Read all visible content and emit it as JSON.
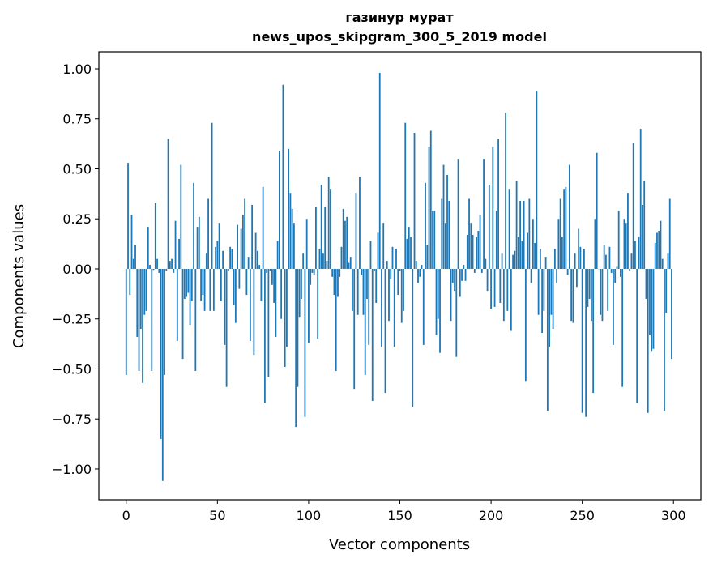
{
  "chart_data": {
    "type": "bar",
    "title_line1": "газинур мурат",
    "title_line2": "news_upos_skipgram_300_5_2019 model",
    "xlabel": "Vector components",
    "ylabel": "Components values",
    "xlim": [
      -15,
      315
    ],
    "ylim": [
      -1.154,
      1.085
    ],
    "xticks": [
      0,
      50,
      100,
      150,
      200,
      250,
      300
    ],
    "xtick_labels": [
      "0",
      "50",
      "100",
      "150",
      "200",
      "250",
      "300"
    ],
    "yticks": [
      1.0,
      0.75,
      0.5,
      0.25,
      0.0,
      -0.25,
      -0.5,
      -0.75,
      -1.0
    ],
    "ytick_labels": [
      "1.00",
      "0.75",
      "0.50",
      "0.25",
      "0.00",
      "−0.25",
      "−0.50",
      "−0.75",
      "−1.00"
    ],
    "grid": false,
    "bar_color": "#1f77b4",
    "values": [
      -0.53,
      0.53,
      -0.13,
      0.27,
      0.05,
      0.12,
      -0.34,
      -0.51,
      -0.3,
      -0.57,
      -0.23,
      -0.21,
      0.21,
      0.02,
      -0.51,
      -0.005,
      0.33,
      0.05,
      -0.02,
      -0.85,
      -1.06,
      -0.53,
      -0.01,
      0.65,
      0.04,
      0.05,
      -0.02,
      0.24,
      -0.36,
      0.15,
      0.52,
      -0.45,
      -0.15,
      -0.14,
      -0.12,
      -0.28,
      -0.16,
      0.43,
      -0.51,
      0.21,
      0.26,
      -0.16,
      -0.13,
      -0.21,
      0.08,
      0.35,
      -0.21,
      0.73,
      -0.21,
      0.11,
      0.14,
      0.23,
      -0.16,
      0.09,
      -0.38,
      -0.59,
      -0.01,
      0.11,
      0.1,
      -0.18,
      -0.27,
      0.22,
      -0.1,
      0.2,
      0.27,
      0.35,
      -0.13,
      0.06,
      -0.36,
      0.32,
      -0.43,
      0.18,
      0.09,
      0.02,
      -0.16,
      0.41,
      -0.67,
      -0.02,
      -0.54,
      -0.01,
      -0.08,
      -0.17,
      -0.34,
      0.14,
      0.59,
      -0.25,
      0.92,
      -0.49,
      -0.39,
      0.6,
      0.38,
      0.3,
      0.23,
      -0.79,
      -0.59,
      -0.24,
      -0.15,
      0.08,
      -0.74,
      0.25,
      -0.37,
      -0.08,
      -0.02,
      -0.03,
      0.31,
      -0.35,
      0.1,
      0.42,
      0.08,
      0.31,
      0.04,
      0.46,
      0.4,
      -0.04,
      -0.13,
      -0.51,
      -0.14,
      -0.04,
      0.11,
      0.3,
      0.24,
      0.26,
      0.03,
      0.06,
      -0.21,
      -0.6,
      0.38,
      -0.23,
      0.46,
      -0.03,
      -0.23,
      -0.53,
      -0.15,
      -0.38,
      0.14,
      -0.66,
      -0.01,
      -0.17,
      0.18,
      0.98,
      -0.39,
      0.23,
      -0.62,
      0.04,
      -0.26,
      -0.05,
      0.11,
      -0.39,
      0.1,
      -0.13,
      -0.01,
      -0.27,
      -0.21,
      0.73,
      0.15,
      0.21,
      0.16,
      -0.69,
      0.68,
      0.04,
      -0.07,
      -0.04,
      0.02,
      -0.38,
      0.43,
      0.12,
      0.61,
      0.69,
      0.29,
      0.29,
      -0.33,
      -0.25,
      -0.42,
      0.35,
      0.52,
      0.23,
      0.47,
      0.34,
      -0.26,
      -0.07,
      -0.11,
      -0.44,
      0.55,
      -0.14,
      -0.06,
      0.02,
      -0.06,
      0.17,
      0.35,
      0.23,
      0.17,
      -0.02,
      0.16,
      0.19,
      0.27,
      -0.02,
      0.55,
      0.05,
      -0.11,
      0.42,
      -0.2,
      0.61,
      -0.19,
      0.29,
      0.65,
      -0.17,
      0.08,
      -0.26,
      0.78,
      -0.21,
      0.4,
      -0.31,
      0.07,
      0.09,
      0.44,
      0.16,
      0.34,
      0.14,
      0.34,
      -0.56,
      0.18,
      0.35,
      -0.07,
      0.25,
      0.13,
      0.89,
      -0.23,
      0.1,
      -0.32,
      -0.21,
      0.06,
      -0.71,
      -0.39,
      -0.23,
      -0.3,
      0.1,
      -0.07,
      0.25,
      0.35,
      0.16,
      0.4,
      0.41,
      -0.03,
      0.52,
      -0.26,
      -0.27,
      0.08,
      -0.09,
      0.2,
      0.11,
      -0.72,
      0.1,
      -0.74,
      -0.19,
      -0.15,
      -0.26,
      -0.62,
      0.25,
      0.58,
      0.0,
      -0.23,
      -0.26,
      0.12,
      0.07,
      -0.21,
      0.11,
      -0.02,
      -0.38,
      -0.07,
      0.01,
      0.29,
      -0.04,
      -0.59,
      0.25,
      0.23,
      0.38,
      -0.01,
      0.08,
      0.63,
      0.14,
      -0.67,
      0.16,
      0.7,
      0.32,
      0.44,
      -0.15,
      -0.72,
      -0.33,
      -0.41,
      -0.4,
      0.13,
      0.18,
      0.19,
      0.24,
      0.05,
      -0.71,
      -0.22,
      0.08,
      0.35,
      -0.45
    ]
  }
}
